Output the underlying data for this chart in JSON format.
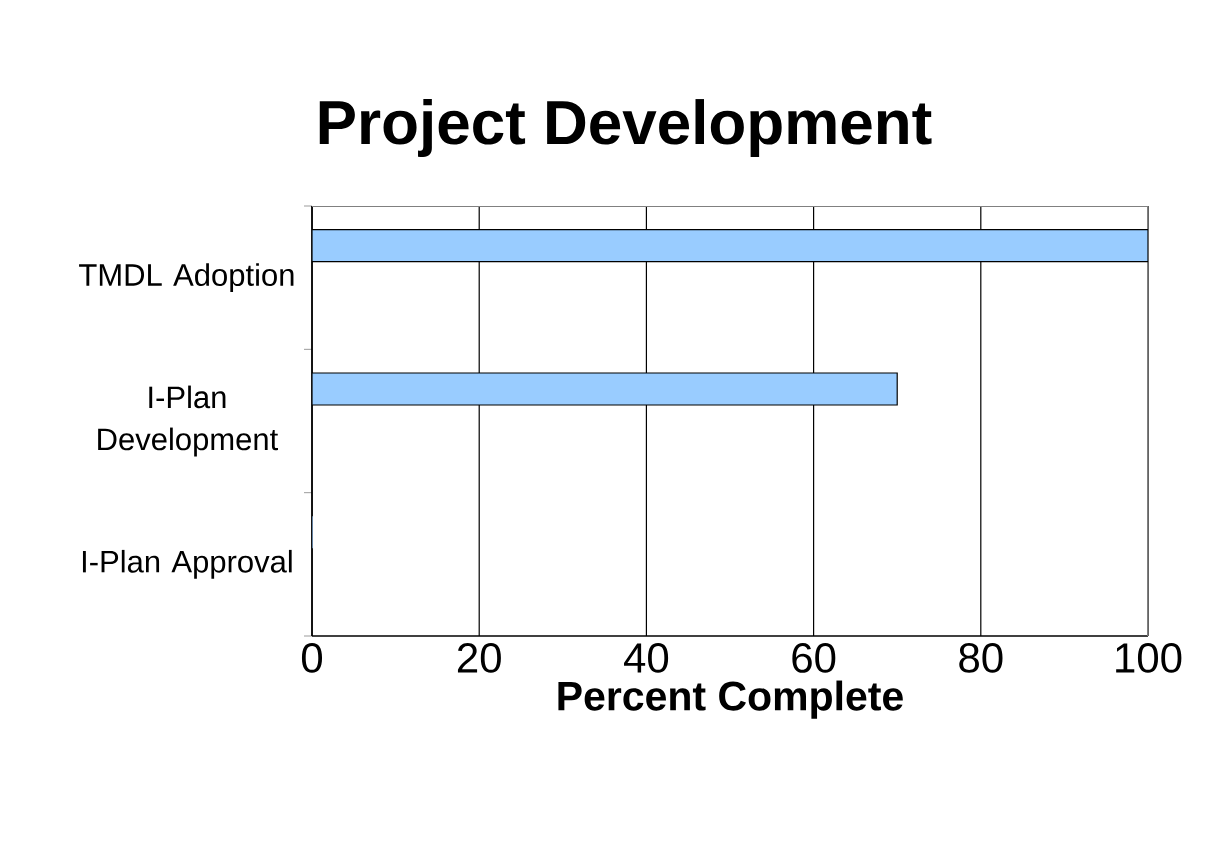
{
  "chart_data": {
    "type": "bar",
    "orientation": "horizontal",
    "title": "Project Development",
    "xlabel": "Percent Complete",
    "categories": [
      "TMDL Adoption",
      "I-Plan Development",
      "I-Plan Approval"
    ],
    "values": [
      100,
      70,
      0
    ],
    "color": "#99ccff",
    "xlim": [
      0,
      100
    ],
    "xticks": [
      0,
      20,
      40,
      60,
      80,
      100
    ],
    "grid": "x"
  }
}
